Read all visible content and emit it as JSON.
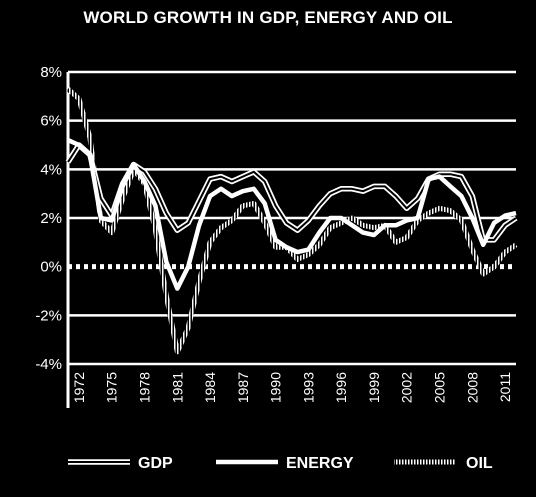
{
  "chart_data": {
    "type": "line",
    "title": "WORLD GROWTH IN GDP, ENERGY AND OIL",
    "xlabel": "",
    "ylabel": "",
    "ylim": [
      -4,
      8
    ],
    "yticks": [
      -4,
      -2,
      0,
      2,
      4,
      6,
      8
    ],
    "ytick_labels": [
      "-4%",
      "-2%",
      "0%",
      "2%",
      "4%",
      "6%",
      "8%"
    ],
    "x": [
      1971,
      1972,
      1973,
      1974,
      1975,
      1976,
      1977,
      1978,
      1979,
      1980,
      1981,
      1982,
      1983,
      1984,
      1985,
      1986,
      1987,
      1988,
      1989,
      1990,
      1991,
      1992,
      1993,
      1994,
      1995,
      1996,
      1997,
      1998,
      1999,
      2000,
      2001,
      2002,
      2003,
      2004,
      2005,
      2006,
      2007,
      2008,
      2009,
      2010,
      2011,
      2012
    ],
    "xtick_labels": [
      "1972",
      "1975",
      "1978",
      "1981",
      "1984",
      "1987",
      "1990",
      "1993",
      "1996",
      "1999",
      "2002",
      "2005",
      "2008",
      "2011"
    ],
    "grid": true,
    "legend_position": "bottom",
    "series": [
      {
        "name": "GDP",
        "style": "double",
        "values": [
          4.3,
          5.0,
          4.6,
          2.8,
          2.1,
          3.4,
          4.2,
          3.9,
          3.2,
          2.2,
          1.5,
          1.8,
          2.7,
          3.6,
          3.7,
          3.5,
          3.7,
          3.9,
          3.5,
          2.5,
          1.8,
          1.5,
          1.9,
          2.5,
          3.0,
          3.2,
          3.2,
          3.1,
          3.3,
          3.3,
          2.9,
          2.4,
          2.8,
          3.6,
          3.8,
          3.8,
          3.7,
          2.9,
          1.1,
          1.1,
          1.7,
          2.0
        ]
      },
      {
        "name": "ENERGY",
        "style": "solid",
        "values": [
          5.2,
          5.0,
          4.6,
          2.0,
          1.9,
          3.3,
          4.2,
          3.5,
          2.5,
          0.2,
          -0.9,
          0.0,
          1.7,
          2.9,
          3.2,
          2.9,
          3.1,
          3.2,
          2.6,
          1.1,
          0.8,
          0.6,
          0.7,
          1.4,
          2.0,
          2.0,
          1.7,
          1.4,
          1.3,
          1.7,
          1.7,
          1.9,
          2.0,
          3.6,
          3.7,
          3.3,
          2.9,
          2.0,
          0.9,
          1.8,
          2.1,
          2.2
        ]
      },
      {
        "name": "OIL",
        "style": "dotted",
        "values": [
          7.3,
          6.9,
          5.3,
          1.9,
          1.4,
          2.8,
          4.0,
          3.4,
          1.5,
          -1.2,
          -3.5,
          -2.5,
          -0.6,
          1.0,
          1.6,
          1.9,
          2.5,
          2.6,
          1.8,
          0.8,
          0.8,
          0.3,
          0.5,
          0.9,
          1.6,
          1.8,
          2.0,
          1.7,
          1.6,
          1.7,
          1.0,
          1.2,
          1.9,
          2.2,
          2.4,
          2.3,
          1.9,
          0.7,
          -0.3,
          0.0,
          0.6,
          0.9
        ]
      }
    ]
  }
}
